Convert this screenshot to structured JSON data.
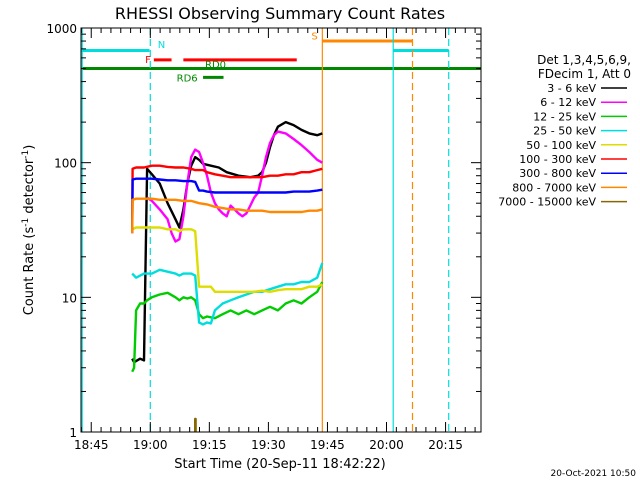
{
  "chart_data": {
    "type": "line",
    "title": "RHESSI Observing Summary Count Rates",
    "xlabel": "Start Time (20-Sep-11 18:42:22)",
    "ylabel_main": "Count Rate (s",
    "ylabel_sup1": "-1",
    "ylabel_mid": " detector",
    "ylabel_sup2": "-1",
    "ylabel_end": ")",
    "yscale": "log",
    "ylim": [
      1,
      1000
    ],
    "x_units": "minutes after 18:42:22",
    "xlim": [
      0,
      101.6
    ],
    "x_ticks": [
      {
        "label": "18:45",
        "x": 2.6
      },
      {
        "label": "19:00",
        "x": 17.6
      },
      {
        "label": "19:15",
        "x": 32.6
      },
      {
        "label": "19:30",
        "x": 47.6
      },
      {
        "label": "19:45",
        "x": 62.6
      },
      {
        "label": "20:00",
        "x": 77.6
      },
      {
        "label": "20:15",
        "x": 92.6
      }
    ],
    "y_ticks": [
      {
        "label": "1",
        "v": 1
      },
      {
        "label": "10",
        "v": 10
      },
      {
        "label": "100",
        "v": 100
      },
      {
        "label": "1000",
        "v": 1000
      }
    ],
    "legend_header": [
      "Det 1,3,4,5,6,9,",
      "FDecim 1, Att 0"
    ],
    "series": [
      {
        "name": "3 - 6 keV",
        "color": "#000000",
        "points": [
          [
            13,
            3.5
          ],
          [
            13.5,
            3.3
          ],
          [
            15,
            3.5
          ],
          [
            16,
            3.4
          ],
          [
            16.8,
            90
          ],
          [
            18,
            82
          ],
          [
            20,
            70
          ],
          [
            22,
            50
          ],
          [
            24,
            38
          ],
          [
            25,
            33
          ],
          [
            26,
            45
          ],
          [
            27,
            70
          ],
          [
            28,
            95
          ],
          [
            29,
            110
          ],
          [
            30,
            105
          ],
          [
            31,
            98
          ],
          [
            33,
            95
          ],
          [
            35,
            92
          ],
          [
            37,
            85
          ],
          [
            40,
            80
          ],
          [
            43,
            78
          ],
          [
            45,
            80
          ],
          [
            46,
            85
          ],
          [
            47,
            100
          ],
          [
            48,
            130
          ],
          [
            49,
            160
          ],
          [
            50,
            185
          ],
          [
            52,
            200
          ],
          [
            54,
            190
          ],
          [
            56,
            175
          ],
          [
            58,
            165
          ],
          [
            60,
            160
          ],
          [
            61.3,
            165
          ]
        ]
      },
      {
        "name": "6 - 12 keV",
        "color": "#ff00ff",
        "points": [
          [
            16.8,
            55
          ],
          [
            18,
            52
          ],
          [
            20,
            45
          ],
          [
            22,
            38
          ],
          [
            23,
            30
          ],
          [
            24,
            26
          ],
          [
            25,
            27
          ],
          [
            26,
            40
          ],
          [
            27,
            70
          ],
          [
            28,
            110
          ],
          [
            29,
            125
          ],
          [
            30,
            120
          ],
          [
            31,
            100
          ],
          [
            32,
            80
          ],
          [
            33,
            60
          ],
          [
            34,
            50
          ],
          [
            35,
            45
          ],
          [
            36,
            42
          ],
          [
            37,
            40
          ],
          [
            38,
            48
          ],
          [
            39,
            45
          ],
          [
            40,
            42
          ],
          [
            41,
            40
          ],
          [
            42,
            42
          ],
          [
            43,
            48
          ],
          [
            44,
            55
          ],
          [
            45,
            60
          ],
          [
            46,
            80
          ],
          [
            47,
            110
          ],
          [
            48,
            140
          ],
          [
            49,
            160
          ],
          [
            50,
            170
          ],
          [
            52,
            165
          ],
          [
            54,
            150
          ],
          [
            56,
            135
          ],
          [
            58,
            120
          ],
          [
            60,
            105
          ],
          [
            61.3,
            100
          ]
        ]
      },
      {
        "name": "12 - 25 keV",
        "color": "#00cc00",
        "points": [
          [
            13,
            2.8
          ],
          [
            13.5,
            3
          ],
          [
            14,
            8
          ],
          [
            15,
            9
          ],
          [
            16,
            9
          ],
          [
            16.8,
            9.5
          ],
          [
            18,
            10
          ],
          [
            20,
            10.5
          ],
          [
            22,
            10.8
          ],
          [
            24,
            10
          ],
          [
            25,
            9.5
          ],
          [
            26,
            10
          ],
          [
            27,
            9.8
          ],
          [
            28,
            10
          ],
          [
            29,
            9.5
          ],
          [
            30,
            7.5
          ],
          [
            31,
            7
          ],
          [
            32,
            7.2
          ],
          [
            34,
            7
          ],
          [
            36,
            7.5
          ],
          [
            38,
            8
          ],
          [
            40,
            7.5
          ],
          [
            42,
            8
          ],
          [
            44,
            7.5
          ],
          [
            46,
            8
          ],
          [
            48,
            8.5
          ],
          [
            50,
            8
          ],
          [
            52,
            9
          ],
          [
            54,
            9.5
          ],
          [
            56,
            9
          ],
          [
            58,
            10
          ],
          [
            60,
            11
          ],
          [
            61.3,
            13
          ]
        ]
      },
      {
        "name": "25 - 50 keV",
        "color": "#00dddd",
        "points": [
          [
            13,
            15
          ],
          [
            14,
            14
          ],
          [
            16,
            15
          ],
          [
            18,
            15
          ],
          [
            20,
            16
          ],
          [
            22,
            15.5
          ],
          [
            24,
            15
          ],
          [
            25,
            14.5
          ],
          [
            26,
            15
          ],
          [
            28,
            15
          ],
          [
            29,
            14.5
          ],
          [
            30,
            6.5
          ],
          [
            31,
            6.3
          ],
          [
            32,
            6.5
          ],
          [
            33,
            6.4
          ],
          [
            34,
            8
          ],
          [
            36,
            9
          ],
          [
            38,
            9.5
          ],
          [
            40,
            10
          ],
          [
            42,
            10.5
          ],
          [
            44,
            11
          ],
          [
            46,
            11
          ],
          [
            48,
            11.5
          ],
          [
            50,
            12
          ],
          [
            52,
            12.5
          ],
          [
            54,
            12.5
          ],
          [
            56,
            13
          ],
          [
            58,
            13
          ],
          [
            60,
            14
          ],
          [
            61.3,
            18
          ]
        ]
      },
      {
        "name": "50 - 100 keV",
        "color": "#dddd00",
        "points": [
          [
            13,
            32
          ],
          [
            14,
            33
          ],
          [
            16,
            33
          ],
          [
            18,
            33
          ],
          [
            20,
            33
          ],
          [
            22,
            32
          ],
          [
            24,
            32
          ],
          [
            25,
            31
          ],
          [
            26,
            32
          ],
          [
            28,
            32
          ],
          [
            29,
            31
          ],
          [
            30,
            12
          ],
          [
            31,
            12
          ],
          [
            32,
            12
          ],
          [
            33,
            12
          ],
          [
            34,
            11
          ],
          [
            36,
            11
          ],
          [
            38,
            11
          ],
          [
            40,
            11
          ],
          [
            42,
            11
          ],
          [
            44,
            11
          ],
          [
            46,
            11.2
          ],
          [
            48,
            11
          ],
          [
            50,
            11.3
          ],
          [
            52,
            11.5
          ],
          [
            54,
            11.5
          ],
          [
            56,
            11.5
          ],
          [
            58,
            12
          ],
          [
            60,
            12
          ],
          [
            61.3,
            12.5
          ]
        ]
      },
      {
        "name": "100 - 300 keV",
        "color": "#ff0000",
        "points": [
          [
            13,
            30
          ],
          [
            13.1,
            90
          ],
          [
            14,
            92
          ],
          [
            16,
            92
          ],
          [
            18,
            95
          ],
          [
            20,
            95
          ],
          [
            22,
            93
          ],
          [
            24,
            92
          ],
          [
            26,
            92
          ],
          [
            28,
            90
          ],
          [
            29,
            88
          ],
          [
            30,
            88
          ],
          [
            31,
            88
          ],
          [
            32,
            85
          ],
          [
            34,
            82
          ],
          [
            36,
            80
          ],
          [
            38,
            78
          ],
          [
            40,
            78
          ],
          [
            42,
            78
          ],
          [
            44,
            78
          ],
          [
            46,
            78
          ],
          [
            48,
            80
          ],
          [
            50,
            80
          ],
          [
            52,
            82
          ],
          [
            54,
            82
          ],
          [
            56,
            85
          ],
          [
            58,
            85
          ],
          [
            60,
            88
          ],
          [
            61.3,
            90
          ]
        ]
      },
      {
        "name": "300 - 800 keV",
        "color": "#0000ff",
        "points": [
          [
            13,
            30
          ],
          [
            13.1,
            75
          ],
          [
            14,
            76
          ],
          [
            16,
            76
          ],
          [
            18,
            76
          ],
          [
            20,
            75
          ],
          [
            22,
            74
          ],
          [
            24,
            74
          ],
          [
            26,
            73
          ],
          [
            28,
            73
          ],
          [
            29,
            72
          ],
          [
            30,
            62
          ],
          [
            31,
            62
          ],
          [
            32,
            61
          ],
          [
            34,
            60
          ],
          [
            36,
            60
          ],
          [
            38,
            60
          ],
          [
            40,
            60
          ],
          [
            42,
            60
          ],
          [
            44,
            60
          ],
          [
            46,
            60
          ],
          [
            48,
            60
          ],
          [
            50,
            60
          ],
          [
            52,
            60
          ],
          [
            54,
            61
          ],
          [
            56,
            61
          ],
          [
            58,
            61
          ],
          [
            60,
            62
          ],
          [
            61.3,
            63
          ]
        ]
      },
      {
        "name": "800 - 7000 keV",
        "color": "#ff8800",
        "points": [
          [
            13,
            30
          ],
          [
            13.1,
            53
          ],
          [
            14,
            54
          ],
          [
            16,
            54
          ],
          [
            18,
            54
          ],
          [
            20,
            53
          ],
          [
            22,
            53
          ],
          [
            24,
            53
          ],
          [
            26,
            52
          ],
          [
            28,
            52
          ],
          [
            30,
            50
          ],
          [
            32,
            49
          ],
          [
            34,
            47
          ],
          [
            36,
            46
          ],
          [
            38,
            45
          ],
          [
            40,
            45
          ],
          [
            42,
            44
          ],
          [
            44,
            44
          ],
          [
            46,
            44
          ],
          [
            48,
            43
          ],
          [
            50,
            43
          ],
          [
            52,
            43
          ],
          [
            54,
            43
          ],
          [
            56,
            43
          ],
          [
            58,
            44
          ],
          [
            60,
            44
          ],
          [
            61.3,
            45
          ]
        ]
      },
      {
        "name": "7000 - 15000 keV",
        "color": "#886600",
        "points": [
          [
            29,
            1
          ],
          [
            29,
            1.25
          ],
          [
            29.1,
            1.25
          ],
          [
            29.1,
            1
          ]
        ]
      }
    ],
    "flags": [
      {
        "label": "N",
        "color": "#00dddd",
        "segments": [
          [
            0,
            17.4
          ],
          [
            79.3,
            93.4
          ]
        ],
        "value": 680,
        "label_x": 19.5,
        "label_v": 760
      },
      {
        "label": "S",
        "color": "#ff8800",
        "segments": [
          [
            61.3,
            84.2
          ]
        ],
        "value": 800,
        "label_x": 58.5,
        "label_v": 880
      },
      {
        "label": "F",
        "color": "#ff0000",
        "segments": [
          [
            18.5,
            23
          ],
          [
            26,
            54.8
          ]
        ],
        "value": 580,
        "label_x": 16.3,
        "label_v": 590
      },
      {
        "label": "RD0",
        "color": "#008800",
        "segments": [
          [
            0,
            101.6
          ]
        ],
        "value": 500,
        "label_x": 31.5,
        "label_v": 540
      },
      {
        "label": "RD6",
        "color": "#008800",
        "segments": [
          [
            31,
            36.2
          ]
        ],
        "value": 430,
        "label_x": 24.3,
        "label_v": 430
      }
    ],
    "vlines": [
      {
        "x": 0.3,
        "color": "#00dddd",
        "dashed": false
      },
      {
        "x": 17.6,
        "color": "#00dddd",
        "dashed": true
      },
      {
        "x": 61.3,
        "color": "#ff8800",
        "dashed": false
      },
      {
        "x": 79.3,
        "color": "#00dddd",
        "dashed": false
      },
      {
        "x": 84.2,
        "color": "#ff8800",
        "dashed": true
      },
      {
        "x": 93.4,
        "color": "#00dddd",
        "dashed": true
      }
    ],
    "grid": false,
    "legend_placement": "right"
  },
  "footer": {
    "timestamp": "20-Oct-2021 10:50"
  }
}
